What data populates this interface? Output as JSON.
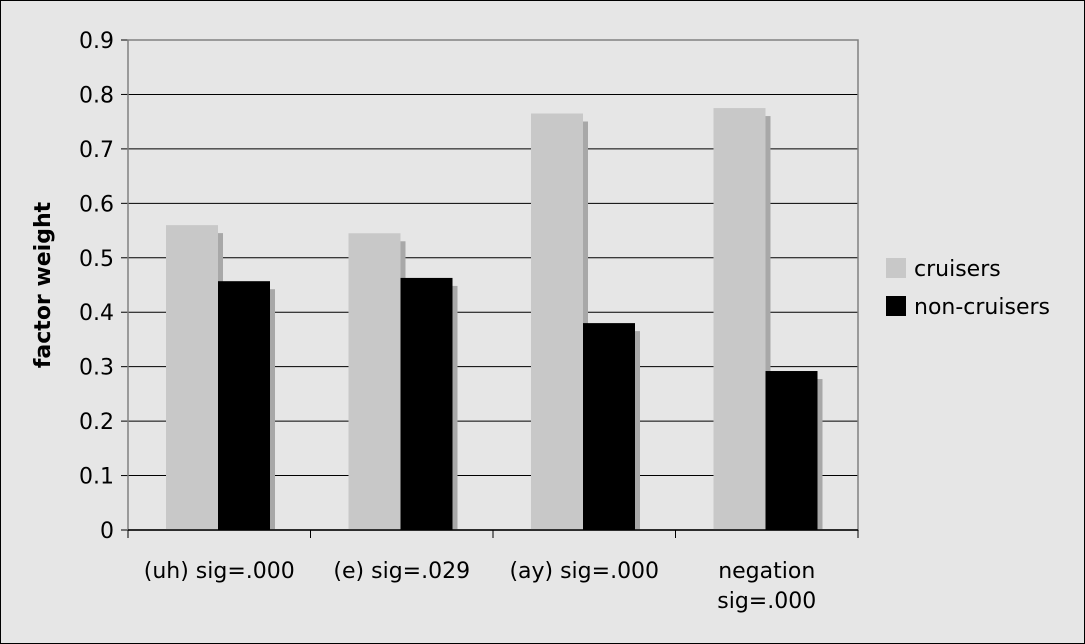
{
  "chart_data": {
    "type": "bar",
    "title": "",
    "xlabel": "",
    "ylabel": "factor weight",
    "ylim": [
      0,
      0.9
    ],
    "yticks": [
      "0",
      "0.1",
      "0.2",
      "0.3",
      "0.4",
      "0.5",
      "0.6",
      "0.7",
      "0.8",
      "0.9"
    ],
    "grid": true,
    "legend_position": "right",
    "categories": [
      [
        "(uh) sig=.000"
      ],
      [
        "(e) sig=.029"
      ],
      [
        "(ay) sig=.000"
      ],
      [
        "negation",
        "sig=.000"
      ]
    ],
    "series": [
      {
        "name": "cruisers",
        "color": "#c8c8c8",
        "values": [
          0.56,
          0.545,
          0.765,
          0.775
        ]
      },
      {
        "name": "non-cruisers",
        "color": "#000000",
        "values": [
          0.457,
          0.463,
          0.38,
          0.292
        ]
      }
    ]
  },
  "colors": {
    "background": "#e6e6e6",
    "shadow": "#a8a8a8",
    "plot_frame": "#808080",
    "gridline": "#000000"
  }
}
